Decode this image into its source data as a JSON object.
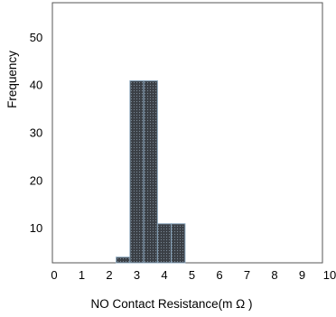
{
  "chart_data": {
    "type": "bar",
    "xlabel": "NO Contact Resistance(m Ω )",
    "ylabel": "Frequency",
    "xlim": [
      0,
      10
    ],
    "ylim": [
      3,
      57
    ],
    "x_ticks": [
      0,
      1,
      2,
      3,
      4,
      5,
      6,
      7,
      8,
      9,
      10
    ],
    "y_ticks": [
      10,
      20,
      30,
      40,
      50
    ],
    "bins": [
      {
        "start": 2.25,
        "end": 2.75,
        "value": 4
      },
      {
        "start": 2.75,
        "end": 3.25,
        "value": 41
      },
      {
        "start": 3.25,
        "end": 3.75,
        "value": 41
      },
      {
        "start": 3.75,
        "end": 4.25,
        "value": 11
      },
      {
        "start": 4.25,
        "end": 4.75,
        "value": 11
      }
    ],
    "bar_style": {
      "fill": "#3a3f45",
      "stroke": "#8aa6bd"
    },
    "grid": false
  }
}
